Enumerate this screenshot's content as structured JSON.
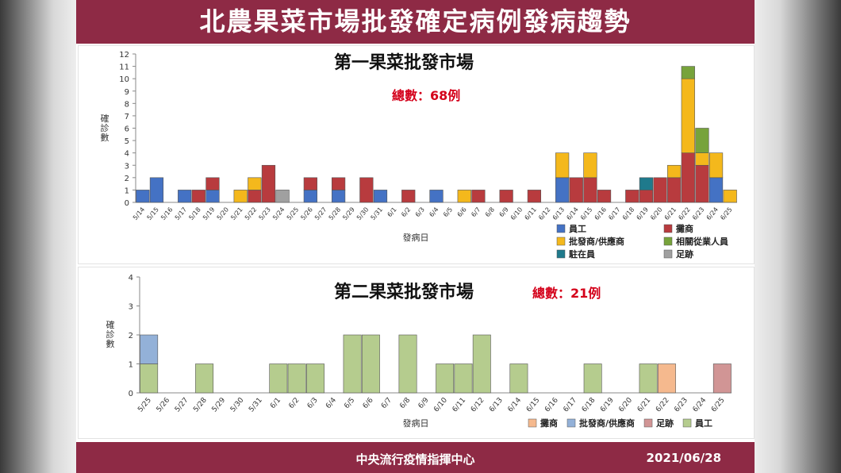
{
  "header": {
    "title": "北農果菜市場批發確定病例發病趨勢"
  },
  "footer": {
    "organization": "中央流行疫情指揮中心",
    "date": "2021/06/28"
  },
  "colors": {
    "brand": "#8e2a45",
    "total_text": "#d4001a"
  },
  "chart_data": [
    {
      "type": "bar",
      "stacked": true,
      "title": "第一果菜批發市場",
      "total_label": "總數：68例",
      "xlabel": "發病日",
      "ylabel": "確診數",
      "ylim": [
        0,
        12
      ],
      "yticks": [
        0,
        1,
        2,
        3,
        4,
        5,
        6,
        7,
        8,
        9,
        10,
        11,
        12
      ],
      "grid": false,
      "legend": "bottom-right",
      "categories": [
        "5/14",
        "5/15",
        "5/16",
        "5/17",
        "5/18",
        "5/19",
        "5/20",
        "5/21",
        "5/22",
        "5/23",
        "5/24",
        "5/25",
        "5/26",
        "5/27",
        "5/28",
        "5/29",
        "5/30",
        "5/31",
        "6/1",
        "6/2",
        "6/3",
        "6/4",
        "6/5",
        "6/6",
        "6/7",
        "6/8",
        "6/9",
        "6/10",
        "6/11",
        "6/12",
        "6/13",
        "6/14",
        "6/15",
        "6/16",
        "6/17",
        "6/18",
        "6/19",
        "6/20",
        "6/21",
        "6/22",
        "6/23",
        "6/24",
        "6/25"
      ],
      "series": [
        {
          "name": "員工",
          "color": "#4472c4",
          "values": [
            1,
            2,
            0,
            1,
            0,
            1,
            0,
            0,
            0,
            0,
            0,
            0,
            1,
            0,
            1,
            0,
            0,
            1,
            0,
            0,
            0,
            1,
            0,
            0,
            0,
            0,
            0,
            0,
            0,
            0,
            2,
            0,
            0,
            0,
            0,
            0,
            0,
            0,
            0,
            0,
            0,
            2,
            0
          ]
        },
        {
          "name": "攤商",
          "color": "#b83b3e",
          "values": [
            0,
            0,
            0,
            0,
            1,
            1,
            0,
            0,
            1,
            3,
            0,
            0,
            1,
            0,
            1,
            0,
            2,
            0,
            0,
            1,
            0,
            0,
            0,
            0,
            1,
            0,
            1,
            0,
            1,
            0,
            0,
            2,
            2,
            1,
            0,
            1,
            1,
            2,
            2,
            4,
            3,
            0,
            0
          ]
        },
        {
          "name": "批發商/供應商",
          "color": "#f4b81c",
          "values": [
            0,
            0,
            0,
            0,
            0,
            0,
            0,
            1,
            1,
            0,
            0,
            0,
            0,
            0,
            0,
            0,
            0,
            0,
            0,
            0,
            0,
            0,
            0,
            1,
            0,
            0,
            0,
            0,
            0,
            0,
            2,
            0,
            2,
            0,
            0,
            0,
            0,
            0,
            1,
            6,
            1,
            2,
            1
          ]
        },
        {
          "name": "相關從業人員",
          "color": "#77a33b",
          "values": [
            0,
            0,
            0,
            0,
            0,
            0,
            0,
            0,
            0,
            0,
            0,
            0,
            0,
            0,
            0,
            0,
            0,
            0,
            0,
            0,
            0,
            0,
            0,
            0,
            0,
            0,
            0,
            0,
            0,
            0,
            0,
            0,
            0,
            0,
            0,
            0,
            0,
            0,
            0,
            1,
            2,
            0,
            0
          ]
        },
        {
          "name": "駐在員",
          "color": "#1f7a8c",
          "values": [
            0,
            0,
            0,
            0,
            0,
            0,
            0,
            0,
            0,
            0,
            0,
            0,
            0,
            0,
            0,
            0,
            0,
            0,
            0,
            0,
            0,
            0,
            0,
            0,
            0,
            0,
            0,
            0,
            0,
            0,
            0,
            0,
            0,
            0,
            0,
            0,
            1,
            0,
            0,
            0,
            0,
            0,
            0
          ]
        },
        {
          "name": "足跡",
          "color": "#a0a0a0",
          "values": [
            0,
            0,
            0,
            0,
            0,
            0,
            0,
            0,
            0,
            0,
            1,
            0,
            0,
            0,
            0,
            0,
            0,
            0,
            0,
            0,
            0,
            0,
            0,
            0,
            0,
            0,
            0,
            0,
            0,
            0,
            0,
            0,
            0,
            0,
            0,
            0,
            0,
            0,
            0,
            0,
            0,
            0,
            0
          ]
        }
      ]
    },
    {
      "type": "bar",
      "stacked": true,
      "title": "第二果菜批發市場",
      "total_label": "總數：21例",
      "xlabel": "發病日",
      "ylabel": "確診數",
      "ylim": [
        0,
        4
      ],
      "yticks": [
        0,
        1,
        2,
        3,
        4
      ],
      "grid": false,
      "legend": "bottom-right",
      "categories": [
        "5/25",
        "5/26",
        "5/27",
        "5/28",
        "5/29",
        "5/30",
        "5/31",
        "6/1",
        "6/2",
        "6/3",
        "6/4",
        "6/5",
        "6/6",
        "6/7",
        "6/8",
        "6/9",
        "6/10",
        "6/11",
        "6/12",
        "6/13",
        "6/14",
        "6/15",
        "6/16",
        "6/17",
        "6/18",
        "6/19",
        "6/20",
        "6/21",
        "6/22",
        "6/23",
        "6/24",
        "6/25"
      ],
      "series": [
        {
          "name": "員工",
          "color": "#b5cc8e",
          "values": [
            1,
            0,
            0,
            1,
            0,
            0,
            0,
            1,
            1,
            1,
            0,
            2,
            2,
            0,
            2,
            0,
            1,
            1,
            2,
            0,
            1,
            0,
            0,
            0,
            1,
            0,
            0,
            1,
            0,
            0,
            0,
            0
          ]
        },
        {
          "name": "批發商/供應商",
          "color": "#93b1d8",
          "values": [
            1,
            0,
            0,
            0,
            0,
            0,
            0,
            0,
            0,
            0,
            0,
            0,
            0,
            0,
            0,
            0,
            0,
            0,
            0,
            0,
            0,
            0,
            0,
            0,
            0,
            0,
            0,
            0,
            0,
            0,
            0,
            0
          ]
        },
        {
          "name": "攤商",
          "color": "#f5b98e",
          "values": [
            0,
            0,
            0,
            0,
            0,
            0,
            0,
            0,
            0,
            0,
            0,
            0,
            0,
            0,
            0,
            0,
            0,
            0,
            0,
            0,
            0,
            0,
            0,
            0,
            0,
            0,
            0,
            0,
            1,
            0,
            0,
            0
          ]
        },
        {
          "name": "足跡",
          "color": "#d19595",
          "values": [
            0,
            0,
            0,
            0,
            0,
            0,
            0,
            0,
            0,
            0,
            0,
            0,
            0,
            0,
            0,
            0,
            0,
            0,
            0,
            0,
            0,
            0,
            0,
            0,
            0,
            0,
            0,
            0,
            0,
            0,
            0,
            1
          ]
        }
      ],
      "legend_order": [
        "攤商",
        "批發商/供應商",
        "足跡",
        "員工"
      ]
    }
  ]
}
